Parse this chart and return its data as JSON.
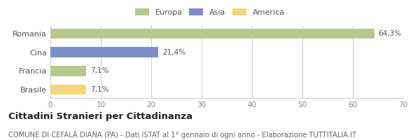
{
  "categories": [
    "Romania",
    "Cina",
    "Francia",
    "Brasile"
  ],
  "values": [
    64.3,
    21.4,
    7.1,
    7.1
  ],
  "labels": [
    "64,3%",
    "21,4%",
    "7,1%",
    "7,1%"
  ],
  "colors": [
    "#b5c98e",
    "#7b8ec8",
    "#b5c98e",
    "#f5d57a"
  ],
  "legend": [
    {
      "label": "Europa",
      "color": "#b5c98e"
    },
    {
      "label": "Asia",
      "color": "#7b8ec8"
    },
    {
      "label": "America",
      "color": "#f5d57a"
    }
  ],
  "xlim": [
    0,
    70
  ],
  "xticks": [
    0,
    10,
    20,
    30,
    40,
    50,
    60,
    70
  ],
  "title": "Cittadini Stranieri per Cittadinanza",
  "subtitle": "COMUNE DI CEFALÀ DIANA (PA) - Dati ISTAT al 1° gennaio di ogni anno - Elaborazione TUTTITALIA.IT",
  "title_fontsize": 9.5,
  "subtitle_fontsize": 7.2,
  "bg_color": "#ffffff",
  "grid_color": "#cccccc",
  "bar_height": 0.55
}
